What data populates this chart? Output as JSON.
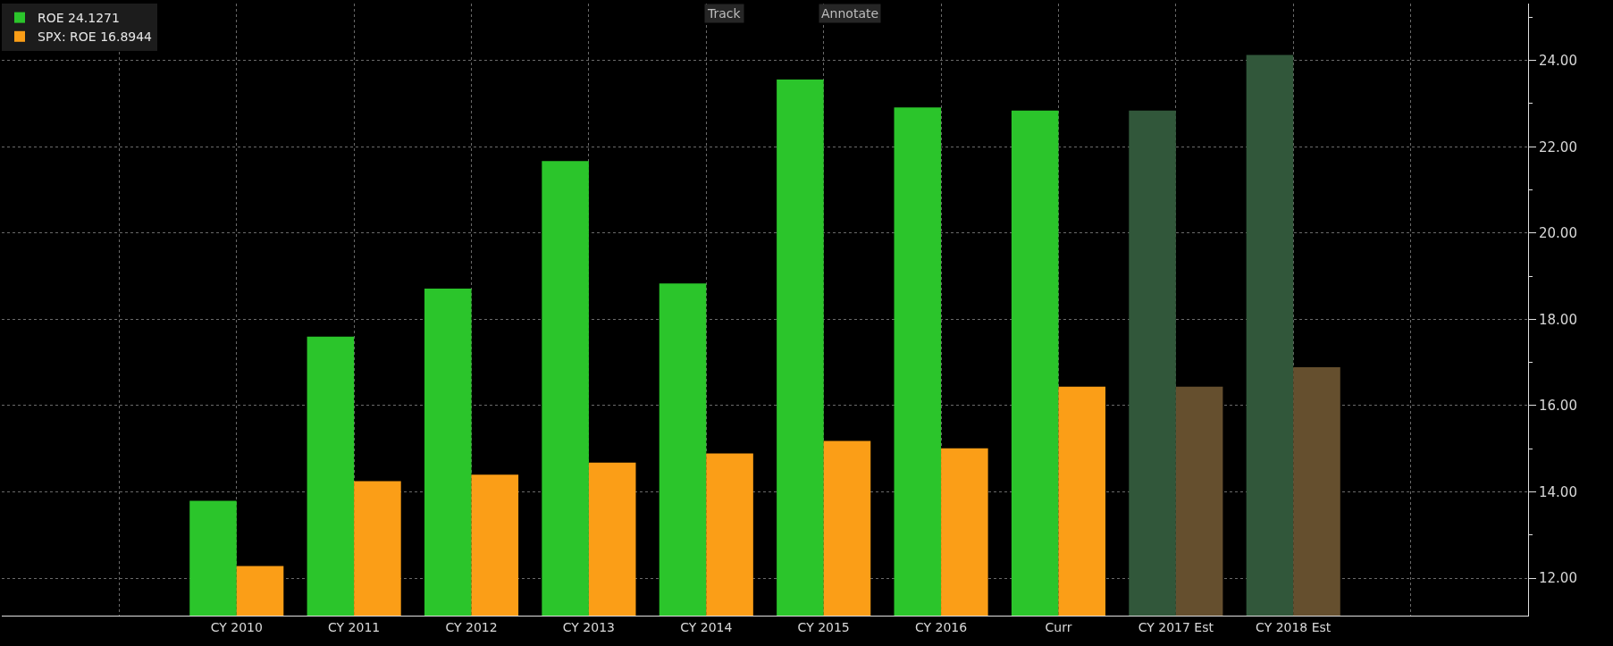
{
  "chart_data": {
    "type": "bar",
    "categories": [
      null,
      "CY 2010",
      "CY 2011",
      "CY 2012",
      "CY 2013",
      "CY 2014",
      "CY 2015",
      "CY 2016",
      "Curr",
      "CY 2017 Est",
      "CY 2018 Est",
      null
    ],
    "series": [
      {
        "name": "ROE 24.1271",
        "color": "#2bc52b",
        "colors": [
          null,
          "#2bc52b",
          "#2bc52b",
          "#2bc52b",
          "#2bc52b",
          "#2bc52b",
          "#2bc52b",
          "#2bc52b",
          "#2bc52b",
          "#31573a",
          "#31573a",
          null
        ],
        "values": [
          null,
          13.79,
          17.6,
          18.71,
          21.67,
          18.83,
          23.56,
          22.91,
          22.84,
          22.84,
          24.13,
          null
        ]
      },
      {
        "name": "SPX: ROE 16.8944",
        "color": "#fb9e17",
        "colors": [
          null,
          "#fb9e17",
          "#fb9e17",
          "#fb9e17",
          "#fb9e17",
          "#fb9e17",
          "#fb9e17",
          "#fb9e17",
          "#fb9e17",
          "#654f2e",
          "#654f2e",
          null
        ],
        "values": [
          null,
          12.28,
          14.25,
          14.4,
          14.68,
          14.89,
          15.18,
          15.01,
          16.44,
          16.44,
          16.89,
          null
        ]
      }
    ],
    "ylim": [
      11.13,
      25.32
    ],
    "yticks": [
      {
        "value": 12,
        "label": "12.00"
      },
      {
        "value": 13,
        "label": null
      },
      {
        "value": 14,
        "label": "14.00"
      },
      {
        "value": 15,
        "label": null
      },
      {
        "value": 16,
        "label": "16.00"
      },
      {
        "value": 17,
        "label": null
      },
      {
        "value": 18,
        "label": "18.00"
      },
      {
        "value": 19,
        "label": null
      },
      {
        "value": 20,
        "label": "20.00"
      },
      {
        "value": 21,
        "label": null
      },
      {
        "value": 22,
        "label": "22.00"
      },
      {
        "value": 23,
        "label": null
      },
      {
        "value": 24,
        "label": "24.00"
      },
      {
        "value": 25,
        "label": null
      }
    ],
    "grid": true,
    "legend": "top left",
    "annotations": [
      "Track",
      "Annotate"
    ]
  }
}
